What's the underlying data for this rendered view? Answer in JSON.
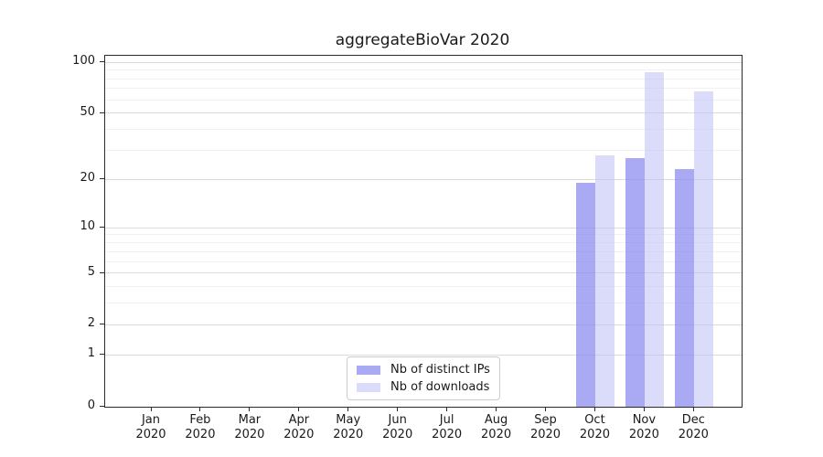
{
  "chart_data": {
    "type": "bar",
    "title": "aggregateBioVar 2020",
    "year": "2020",
    "categories": [
      "Jan",
      "Feb",
      "Mar",
      "Apr",
      "May",
      "Jun",
      "Jul",
      "Aug",
      "Sep",
      "Oct",
      "Nov",
      "Dec"
    ],
    "series": [
      {
        "name": "Nb of distinct IPs",
        "color": "#8888f0b8",
        "values": [
          0,
          0,
          0,
          0,
          0,
          0,
          0,
          0,
          0,
          19,
          27,
          23
        ]
      },
      {
        "name": "Nb of downloads",
        "color": "#bebef58c",
        "values": [
          0,
          0,
          0,
          0,
          0,
          0,
          0,
          0,
          0,
          28,
          87,
          67
        ]
      }
    ],
    "y_scale": "symlog",
    "ylim": [
      0,
      100
    ],
    "y_ticks": [
      0,
      1,
      2,
      5,
      10,
      20,
      50,
      100
    ],
    "y_minor_gridlines": [
      3,
      4,
      6,
      7,
      8,
      9,
      30,
      40,
      60,
      70,
      80,
      90
    ],
    "grid": true,
    "legend_position": "lower center",
    "colors": {
      "axis": "#2b2b2b",
      "text": "#1a1a1a",
      "grid_major": "#dcdcdc",
      "grid_minor": "#f1f1f1",
      "legend_border": "#cccccc"
    }
  }
}
